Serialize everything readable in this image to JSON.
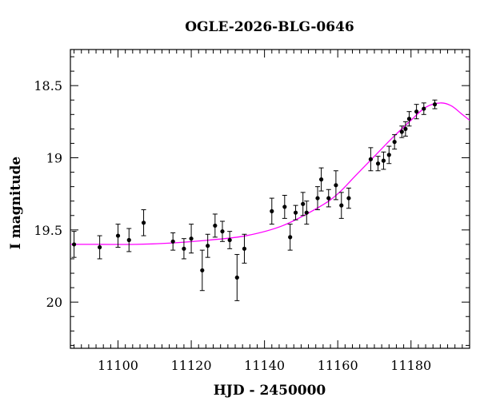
{
  "chart_data": {
    "type": "scatter",
    "title": "OGLE-2026-BLG-0646",
    "xlabel": "HJD - 2450000",
    "ylabel": "I magnitude",
    "xlim": [
      11087,
      11196
    ],
    "ylim": [
      20.32,
      18.25
    ],
    "y_inverted": true,
    "grid": false,
    "xticks": [
      11100,
      11120,
      11140,
      11160,
      11180
    ],
    "yticks": [
      18.5,
      19,
      19.5,
      20
    ],
    "ytick_labels": [
      "18.5",
      "19",
      "19.5",
      "20"
    ],
    "colors": {
      "points": "#000000",
      "model": "#ff00ff"
    },
    "series": [
      {
        "kind": "data",
        "points": [
          {
            "x": 11088,
            "y": 19.6,
            "err": 0.09
          },
          {
            "x": 11095,
            "y": 19.62,
            "err": 0.08
          },
          {
            "x": 11100,
            "y": 19.54,
            "err": 0.08
          },
          {
            "x": 11103,
            "y": 19.57,
            "err": 0.08
          },
          {
            "x": 11107,
            "y": 19.45,
            "err": 0.09
          },
          {
            "x": 11115,
            "y": 19.58,
            "err": 0.06
          },
          {
            "x": 11118,
            "y": 19.63,
            "err": 0.07
          },
          {
            "x": 11120,
            "y": 19.56,
            "err": 0.1
          },
          {
            "x": 11123,
            "y": 19.78,
            "err": 0.14
          },
          {
            "x": 11124.5,
            "y": 19.61,
            "err": 0.08
          },
          {
            "x": 11126.5,
            "y": 19.47,
            "err": 0.08
          },
          {
            "x": 11128.5,
            "y": 19.51,
            "err": 0.07
          },
          {
            "x": 11130.5,
            "y": 19.57,
            "err": 0.06
          },
          {
            "x": 11132.5,
            "y": 19.83,
            "err": 0.16
          },
          {
            "x": 11134.5,
            "y": 19.63,
            "err": 0.1
          },
          {
            "x": 11142,
            "y": 19.37,
            "err": 0.09
          },
          {
            "x": 11145.5,
            "y": 19.34,
            "err": 0.08
          },
          {
            "x": 11147,
            "y": 19.55,
            "err": 0.09
          },
          {
            "x": 11148.5,
            "y": 19.38,
            "err": 0.05
          },
          {
            "x": 11150.5,
            "y": 19.32,
            "err": 0.08
          },
          {
            "x": 11151.5,
            "y": 19.38,
            "err": 0.08
          },
          {
            "x": 11154.5,
            "y": 19.28,
            "err": 0.08
          },
          {
            "x": 11155.5,
            "y": 19.15,
            "err": 0.08
          },
          {
            "x": 11157.5,
            "y": 19.28,
            "err": 0.06
          },
          {
            "x": 11159.5,
            "y": 19.19,
            "err": 0.1
          },
          {
            "x": 11161,
            "y": 19.33,
            "err": 0.09
          },
          {
            "x": 11163,
            "y": 19.28,
            "err": 0.07
          },
          {
            "x": 11169,
            "y": 19.01,
            "err": 0.08
          },
          {
            "x": 11171,
            "y": 19.04,
            "err": 0.05
          },
          {
            "x": 11172.5,
            "y": 19.02,
            "err": 0.06
          },
          {
            "x": 11174,
            "y": 18.98,
            "err": 0.06
          },
          {
            "x": 11175.5,
            "y": 18.89,
            "err": 0.05
          },
          {
            "x": 11177.5,
            "y": 18.82,
            "err": 0.04
          },
          {
            "x": 11178.5,
            "y": 18.8,
            "err": 0.05
          },
          {
            "x": 11179.5,
            "y": 18.73,
            "err": 0.05
          },
          {
            "x": 11181.5,
            "y": 18.68,
            "err": 0.05
          },
          {
            "x": 11183.5,
            "y": 18.66,
            "err": 0.04
          },
          {
            "x": 11186.5,
            "y": 18.63,
            "err": 0.03
          }
        ]
      },
      {
        "kind": "model",
        "points": [
          {
            "x": 11087,
            "y": 19.6
          },
          {
            "x": 11095,
            "y": 19.6
          },
          {
            "x": 11105,
            "y": 19.6
          },
          {
            "x": 11115,
            "y": 19.59
          },
          {
            "x": 11125,
            "y": 19.57
          },
          {
            "x": 11135,
            "y": 19.54
          },
          {
            "x": 11145,
            "y": 19.47
          },
          {
            "x": 11155,
            "y": 19.34
          },
          {
            "x": 11160,
            "y": 19.25
          },
          {
            "x": 11165,
            "y": 19.12
          },
          {
            "x": 11170,
            "y": 18.99
          },
          {
            "x": 11175,
            "y": 18.86
          },
          {
            "x": 11180,
            "y": 18.74
          },
          {
            "x": 11184,
            "y": 18.65
          },
          {
            "x": 11188,
            "y": 18.62
          },
          {
            "x": 11191,
            "y": 18.64
          },
          {
            "x": 11194,
            "y": 18.7
          },
          {
            "x": 11196,
            "y": 18.74
          }
        ]
      }
    ]
  }
}
